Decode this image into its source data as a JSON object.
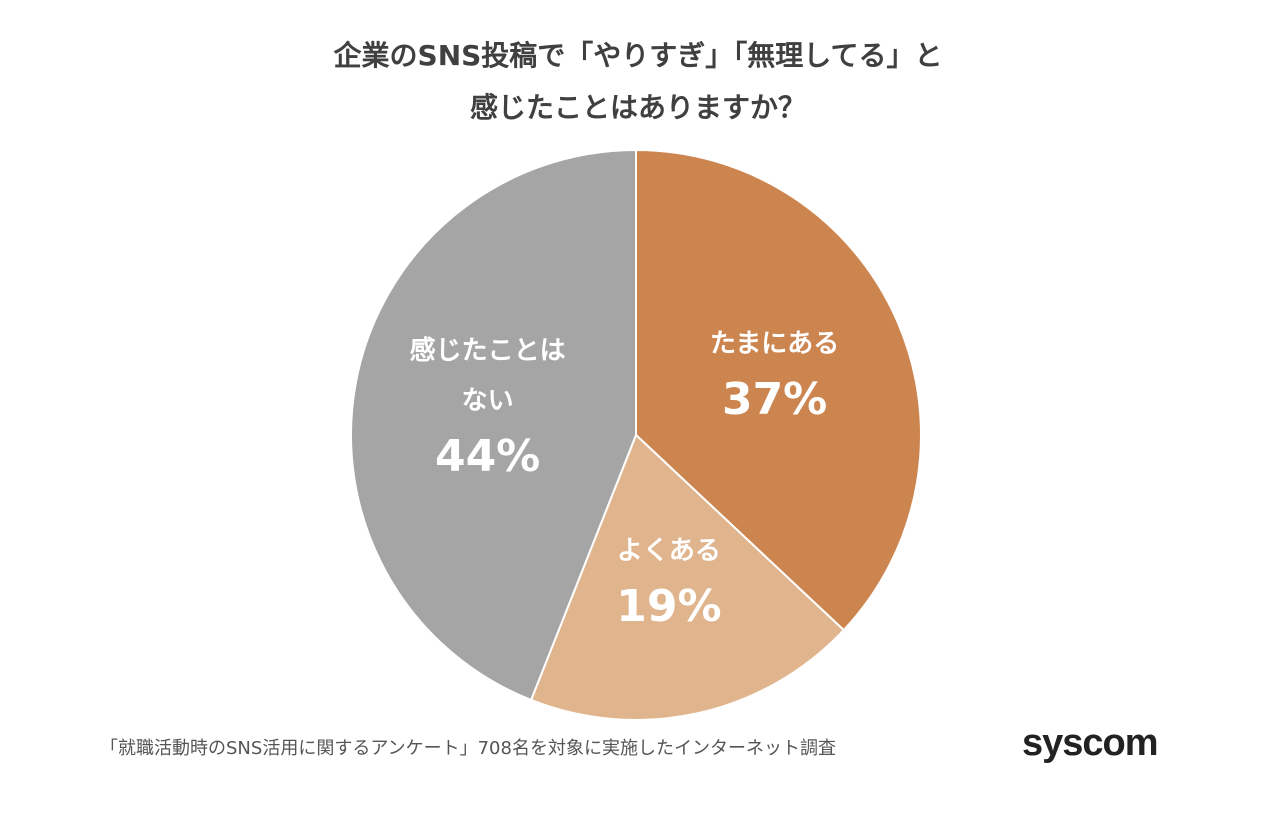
{
  "chart_data": {
    "type": "pie",
    "title": [
      "企業のSNS投稿で「やりすぎ」「無理してる」と",
      "感じたことはありますか？"
    ],
    "categories": [
      "たまにある",
      "よくある",
      "感じたことはない"
    ],
    "values": [
      37,
      19,
      44
    ],
    "value_labels": [
      "37%",
      "19%",
      "44%"
    ],
    "colors": [
      "#cd8550",
      "#e0b48d",
      "#a5a5a5"
    ],
    "note": "「就職活動時のSNS活用に関するアンケート」708名を対象に実施したインターネット調査",
    "logo": "syscom"
  }
}
